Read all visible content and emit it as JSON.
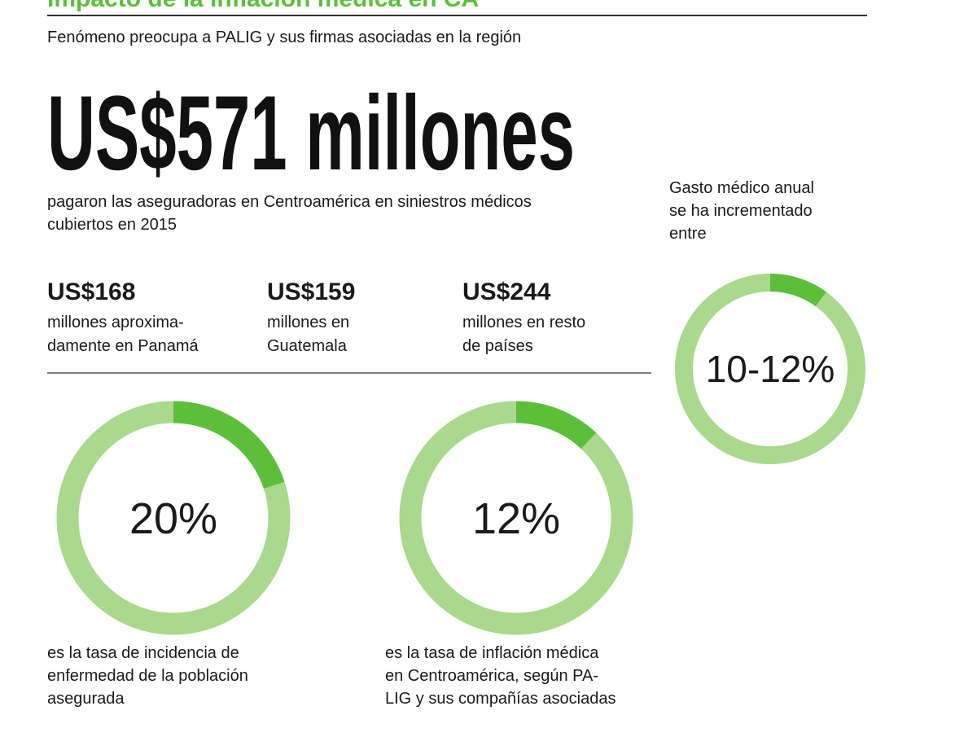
{
  "header": {
    "title": "Impacto de la inflación médica en CA",
    "subtitle": "Fenómeno preocupa a PALIG y sus firmas asociadas en la región"
  },
  "headline": {
    "amount": "US$571 millones",
    "text": [
      "pagaron las aseguradoras en Centroamérica en siniestros médicos",
      "cubiertos en 2015"
    ]
  },
  "breakdown": [
    {
      "amount": "US$168",
      "text": [
        "millones aproxima-",
        "damente en Panamá"
      ]
    },
    {
      "amount": "US$159",
      "text": [
        "millones en",
        "Guatemala"
      ]
    },
    {
      "amount": "US$244",
      "text": [
        "millones en resto",
        "de países"
      ]
    }
  ],
  "donuts": [
    {
      "label": "20%",
      "arc_percent": 20,
      "caption": [
        "es la tasa de incidencia de",
        "enfermedad de la población",
        "asegurada"
      ]
    },
    {
      "label": "12%",
      "arc_percent": 12,
      "caption": [
        "es la tasa de inflación médica",
        "en Centroamérica, según PA-",
        "LIG y sus compañías asociadas"
      ]
    },
    {
      "label": "10-12%",
      "arc_percent": 10,
      "caption": [
        "Gasto médico anual",
        "se ha incrementado",
        "entre"
      ]
    }
  ]
}
